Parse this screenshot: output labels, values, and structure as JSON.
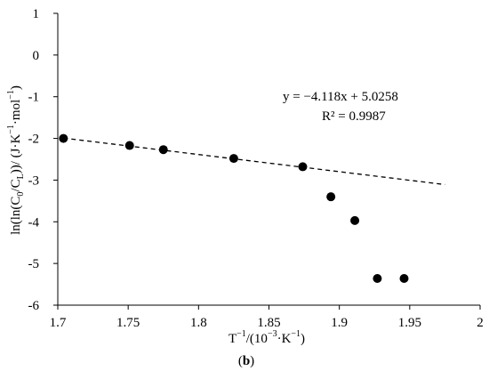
{
  "chart_data": {
    "type": "scatter",
    "xlabel_html": "T<tspan baseline-shift=\"super\" font-size=\"10\">−1</tspan>/(10<tspan baseline-shift=\"super\" font-size=\"10\">−3</tspan>·K<tspan baseline-shift=\"super\" font-size=\"10\">−1</tspan>)",
    "xlabel": "T−1/(10−3·K−1)",
    "ylabel": "ln(ln(C0/CL))/ (J·K−1·mol−1)",
    "panel_label": "(b)",
    "xlim": [
      1.7,
      2.0
    ],
    "ylim": [
      -6,
      1
    ],
    "x_ticks": [
      1.7,
      1.75,
      1.8,
      1.85,
      1.9,
      1.95,
      2.0
    ],
    "x_tick_labels": [
      "1.7",
      "1.75",
      "1.8",
      "1.85",
      "1.9",
      "1.95",
      "2"
    ],
    "y_ticks": [
      1,
      0,
      -1,
      -2,
      -3,
      -4,
      -5,
      -6
    ],
    "y_tick_labels": [
      "1",
      "0",
      "-1",
      "-2",
      "-3",
      "-4",
      "-5",
      "-6"
    ],
    "grid": false,
    "series": [
      {
        "points": [
          {
            "x": 1.704,
            "y": -2.0
          },
          {
            "x": 1.751,
            "y": -2.17
          },
          {
            "x": 1.775,
            "y": -2.27
          },
          {
            "x": 1.825,
            "y": -2.48
          },
          {
            "x": 1.874,
            "y": -2.68
          },
          {
            "x": 1.894,
            "y": -3.4
          },
          {
            "x": 1.911,
            "y": -3.97
          },
          {
            "x": 1.927,
            "y": -5.36
          },
          {
            "x": 1.946,
            "y": -5.36
          }
        ],
        "marker_color": "#000000"
      }
    ],
    "trendline": {
      "slope": -4.118,
      "intercept": 5.0258,
      "x_range": [
        1.704,
        1.975
      ],
      "style": "dashed",
      "equation_text": "y = −4.118x + 5.0258",
      "r2_text": "R² = 0.9987"
    }
  }
}
